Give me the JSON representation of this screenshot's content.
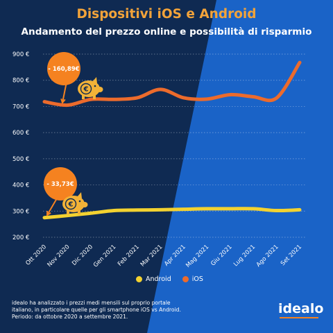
{
  "header": {
    "title": "Dispositivi iOS e Android",
    "subtitle": "Andamento del prezzo online e possibilità di risparmio"
  },
  "colors": {
    "background_dark": "#0f2a52",
    "background_light": "#1a63c7",
    "title_orange": "#f2a33a",
    "ios_line": "#ec6b2c",
    "android_line": "#f3d230",
    "badge": "#f58220",
    "piggy": "#f2b237"
  },
  "chart_data": {
    "type": "line",
    "categories": [
      "Ott 2020",
      "Nov 2020",
      "Dic 2020",
      "Gen 2021",
      "Feb 2021",
      "Mar 2021",
      "Apr 2021",
      "Mag 2021",
      "Giu 2021",
      "Lug 2021",
      "Ago 2021",
      "Set 2021"
    ],
    "ylim": [
      200,
      900
    ],
    "yticks": [
      200,
      300,
      400,
      500,
      600,
      700,
      800,
      900
    ],
    "ytick_labels": [
      "200 €",
      "300 €",
      "400 €",
      "500 €",
      "600 €",
      "700 €",
      "800 €",
      "900 €"
    ],
    "grid": true,
    "legend_position": "bottom",
    "series": [
      {
        "name": "Android",
        "color": "#f3d230",
        "values": [
          275,
          283,
          292,
          302,
          304,
          305,
          307,
          309,
          309,
          309,
          302,
          305
        ]
      },
      {
        "name": "iOS",
        "color": "#ec6b2c",
        "values": [
          718,
          705,
          727,
          727,
          733,
          765,
          733,
          728,
          745,
          737,
          732,
          868
        ]
      }
    ],
    "annotations": [
      {
        "text": "- 160,89€",
        "series": "iOS",
        "category": "Nov 2020"
      },
      {
        "text": "- 33,73€",
        "series": "Android",
        "category": "Ott 2020"
      }
    ]
  },
  "footnote": {
    "line1": "idealo ha analizzato i prezzi medi mensili sul proprio portale",
    "line2": "italiano, in particolare quelle per gli smartphone iOS vs Android.",
    "line3": "Periodo: da ottobre 2020 a settembre 2021."
  },
  "logo": {
    "text": "idealo"
  }
}
